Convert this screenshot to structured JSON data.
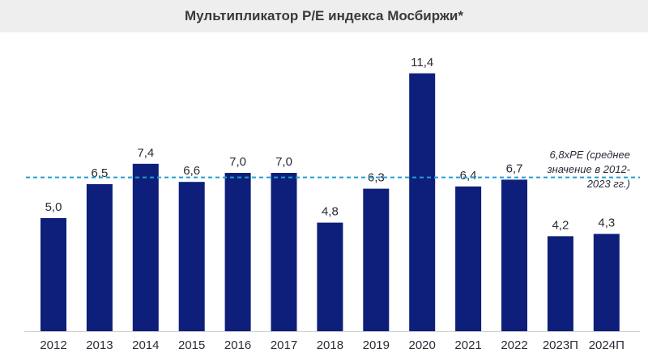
{
  "chart_data": {
    "type": "bar",
    "title": "Мультипликатор P/E индекса Мосбиржи*",
    "categories": [
      "2012",
      "2013",
      "2014",
      "2015",
      "2016",
      "2017",
      "2018",
      "2019",
      "2020",
      "2021",
      "2022",
      "2023П",
      "2024П"
    ],
    "values": [
      5.0,
      6.5,
      7.4,
      6.6,
      7.0,
      7.0,
      4.8,
      6.3,
      11.4,
      6.4,
      6.7,
      4.2,
      4.3
    ],
    "value_labels": [
      "5,0",
      "6,5",
      "7,4",
      "6,6",
      "7,0",
      "7,0",
      "4,8",
      "6,3",
      "11,4",
      "6,4",
      "6,7",
      "4,2",
      "4,3"
    ],
    "reference_line": {
      "value": 6.8,
      "label": "6,8xPE (среднее значение в 2012-2023 гг.)"
    },
    "ylim": [
      0,
      12.5
    ],
    "grid": false,
    "colors": {
      "bar": "#0d1f7a",
      "reference_line": "#1e9fd8",
      "text": "#2b2b3a"
    }
  }
}
